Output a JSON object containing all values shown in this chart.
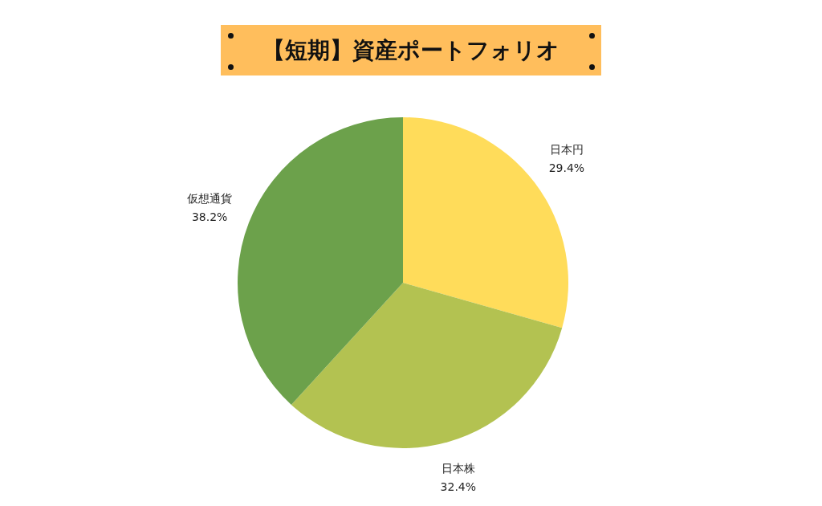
{
  "chart_data": {
    "type": "pie",
    "title": "【短期】資産ポートフォリオ",
    "categories": [
      "日本円",
      "日本株",
      "仮想通貨"
    ],
    "values": [
      29.4,
      32.4,
      38.2
    ],
    "value_labels": [
      "29.4%",
      "32.4%",
      "38.2%"
    ],
    "colors": [
      "#ffdc5a",
      "#b3c251",
      "#6ca14b"
    ],
    "legend": false
  }
}
